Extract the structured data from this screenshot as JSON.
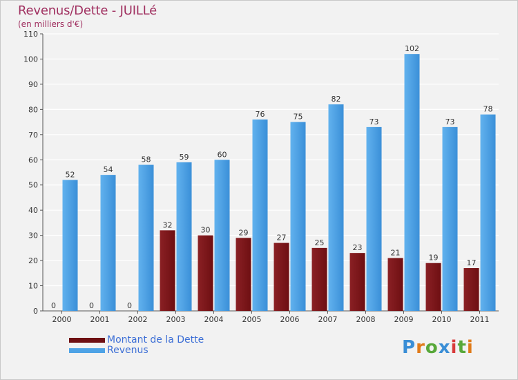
{
  "title": "Revenus/Dette - JUILLé",
  "subtitle": "(en milliers d'€)",
  "logo_text": "Proxiti",
  "colors": {
    "dette": "#6e0f12",
    "revenus": "#4ea3e6",
    "title": "#a03060",
    "legend_text": "#3d6fd6",
    "grid": "#ffffff",
    "background": "#f2f2f2"
  },
  "chart_data": {
    "type": "bar",
    "categories": [
      "2000",
      "2001",
      "2002",
      "2003",
      "2004",
      "2005",
      "2006",
      "2007",
      "2008",
      "2009",
      "2010",
      "2011"
    ],
    "series": [
      {
        "name": "Montant de la Dette",
        "values": [
          0,
          0,
          0,
          32,
          30,
          29,
          27,
          25,
          23,
          21,
          19,
          17
        ]
      },
      {
        "name": "Revenus",
        "values": [
          52,
          54,
          58,
          59,
          60,
          76,
          75,
          82,
          73,
          102,
          73,
          78
        ]
      }
    ],
    "y_ticks": [
      0,
      10,
      20,
      30,
      40,
      50,
      60,
      70,
      80,
      90,
      100,
      110
    ],
    "ylim": [
      0,
      110
    ],
    "grid": true,
    "legend": "bottom-left"
  }
}
